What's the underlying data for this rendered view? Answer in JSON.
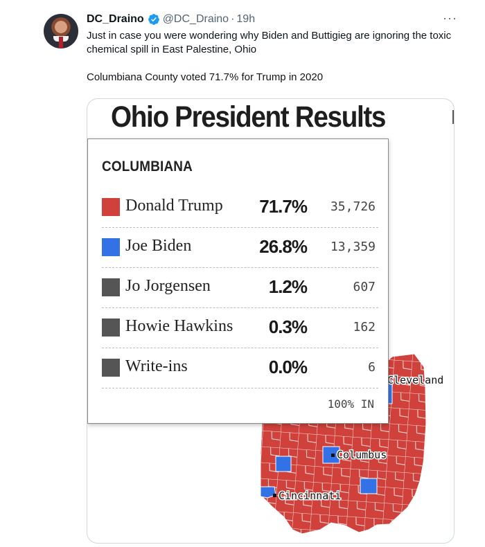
{
  "tweet": {
    "display_name": "DC_Draino",
    "handle": "@DC_Draino",
    "separator": "·",
    "time": "19h",
    "more_icon": "more-horizontal-icon",
    "verified_icon": "verified-badge-icon",
    "text_line1": "Just in case you were wondering why Biden and Buttigieg are ignoring the toxic chemical spill in East Palestine, Ohio",
    "text_line2": "Columbiana County voted 71.7% for Trump in 2020"
  },
  "media": {
    "title": "Ohio President Results",
    "cities": [
      "Cleveland",
      "Columbus",
      "Cincinnati"
    ],
    "colors": {
      "republican": "#d0413b",
      "democrat": "#3272e6",
      "other": "#555555"
    }
  },
  "popup": {
    "county": "COLUMBIANA",
    "reporting": "100% IN",
    "rows": [
      {
        "candidate": "Donald Trump",
        "pct": "71.7%",
        "votes": "35,726",
        "color": "#d0413b"
      },
      {
        "candidate": "Joe Biden",
        "pct": "26.8%",
        "votes": "13,359",
        "color": "#3272e6"
      },
      {
        "candidate": "Jo Jorgensen",
        "pct": "1.2%",
        "votes": "607",
        "color": "#555555"
      },
      {
        "candidate": "Howie Hawkins",
        "pct": "0.3%",
        "votes": "162",
        "color": "#555555"
      },
      {
        "candidate": "Write-ins",
        "pct": "0.0%",
        "votes": "6",
        "color": "#555555"
      }
    ]
  }
}
